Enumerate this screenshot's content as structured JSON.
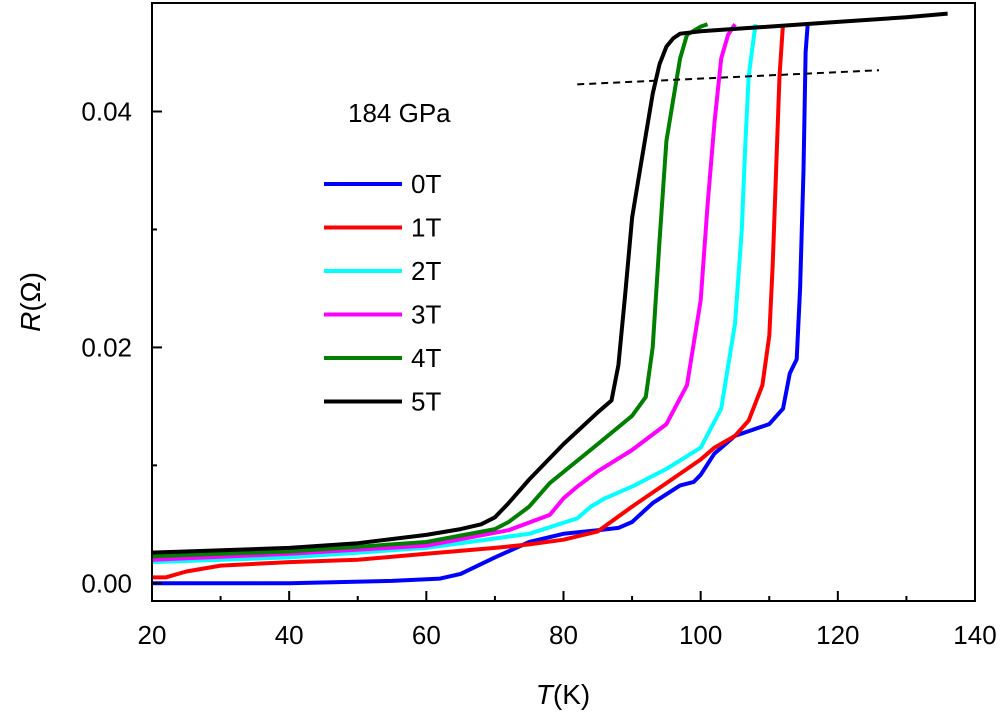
{
  "chart_data": {
    "type": "line",
    "title": "",
    "annotation": "184 GPa",
    "xlabel_symbol": "T",
    "xlabel_unit": "(K)",
    "ylabel_symbol": "R",
    "ylabel_unit": "(Ω)",
    "xlim": [
      20,
      140
    ],
    "ylim": [
      -0.0015,
      0.0492
    ],
    "xticks": [
      20,
      40,
      60,
      80,
      100,
      120,
      140
    ],
    "xtick_labels": [
      "20",
      "40",
      "60",
      "80",
      "100",
      "120",
      "140"
    ],
    "yticks": [
      0.0,
      0.02,
      0.04
    ],
    "ytick_labels": [
      "0.00",
      "0.02",
      "0.04"
    ],
    "legend_position": "center-left",
    "grid": false,
    "dashed_line": {
      "x": [
        82,
        126
      ],
      "y": [
        0.0423,
        0.0435
      ]
    },
    "series": [
      {
        "name": "0T",
        "color": "#0000ff",
        "x": [
          20,
          40,
          55,
          62,
          65,
          70,
          75,
          80,
          85,
          88,
          90,
          93,
          97,
          99,
          100,
          102,
          105,
          110,
          112,
          113,
          114,
          114.5,
          115,
          115.3,
          115.6
        ],
        "y": [
          0.0,
          0.0,
          0.0002,
          0.0004,
          0.0008,
          0.0022,
          0.0035,
          0.0042,
          0.0045,
          0.0047,
          0.0052,
          0.0068,
          0.0083,
          0.0086,
          0.0092,
          0.011,
          0.0125,
          0.0135,
          0.0148,
          0.0178,
          0.019,
          0.025,
          0.035,
          0.045,
          0.0474
        ]
      },
      {
        "name": "1T",
        "color": "#ff0000",
        "x": [
          20,
          22,
          25,
          30,
          40,
          50,
          60,
          70,
          75,
          80,
          85,
          90,
          95,
          100,
          102,
          105,
          107,
          109,
          110,
          110.5,
          111,
          111.5,
          112
        ],
        "y": [
          0.0005,
          0.0005,
          0.001,
          0.0015,
          0.0018,
          0.002,
          0.0025,
          0.003,
          0.0033,
          0.0037,
          0.0044,
          0.0065,
          0.0085,
          0.0105,
          0.0115,
          0.0125,
          0.0138,
          0.0168,
          0.021,
          0.027,
          0.035,
          0.043,
          0.0474
        ]
      },
      {
        "name": "2T",
        "color": "#00ffff",
        "x": [
          20,
          40,
          60,
          75,
          82,
          84,
          86,
          90,
          95,
          100,
          103,
          105,
          106,
          106.5,
          107,
          108
        ],
        "y": [
          0.0018,
          0.0022,
          0.003,
          0.0042,
          0.0055,
          0.0065,
          0.0072,
          0.0082,
          0.0097,
          0.0115,
          0.0148,
          0.022,
          0.03,
          0.037,
          0.043,
          0.0474
        ]
      },
      {
        "name": "3T",
        "color": "#ff00ff",
        "x": [
          20,
          40,
          60,
          72,
          78,
          80,
          82,
          85,
          90,
          95,
          98,
          100,
          101,
          102,
          103,
          104,
          105
        ],
        "y": [
          0.002,
          0.0025,
          0.0032,
          0.0045,
          0.0058,
          0.0072,
          0.0082,
          0.0095,
          0.0113,
          0.0135,
          0.0168,
          0.024,
          0.032,
          0.039,
          0.0445,
          0.0465,
          0.0474
        ]
      },
      {
        "name": "4T",
        "color": "#007f00",
        "x": [
          20,
          40,
          60,
          70,
          72,
          75,
          78,
          85,
          90,
          92,
          93,
          94,
          95,
          96,
          97,
          98,
          100,
          101
        ],
        "y": [
          0.0023,
          0.0027,
          0.0035,
          0.0046,
          0.0052,
          0.0065,
          0.0085,
          0.0118,
          0.0142,
          0.0158,
          0.02,
          0.029,
          0.0375,
          0.041,
          0.0445,
          0.0465,
          0.0472,
          0.0474
        ]
      },
      {
        "name": "5T",
        "color": "#000000",
        "x": [
          20,
          40,
          50,
          60,
          65,
          68,
          70,
          72,
          75,
          80,
          85,
          87,
          88,
          89,
          90,
          91,
          92,
          93,
          94,
          95,
          96,
          97,
          100,
          105,
          110,
          120,
          130,
          136
        ],
        "y": [
          0.0026,
          0.003,
          0.0034,
          0.0041,
          0.0046,
          0.005,
          0.0056,
          0.0068,
          0.0088,
          0.0118,
          0.0145,
          0.0155,
          0.0185,
          0.0245,
          0.031,
          0.0345,
          0.038,
          0.0415,
          0.044,
          0.0455,
          0.0462,
          0.0466,
          0.0468,
          0.047,
          0.0472,
          0.0476,
          0.048,
          0.0483
        ]
      }
    ]
  }
}
